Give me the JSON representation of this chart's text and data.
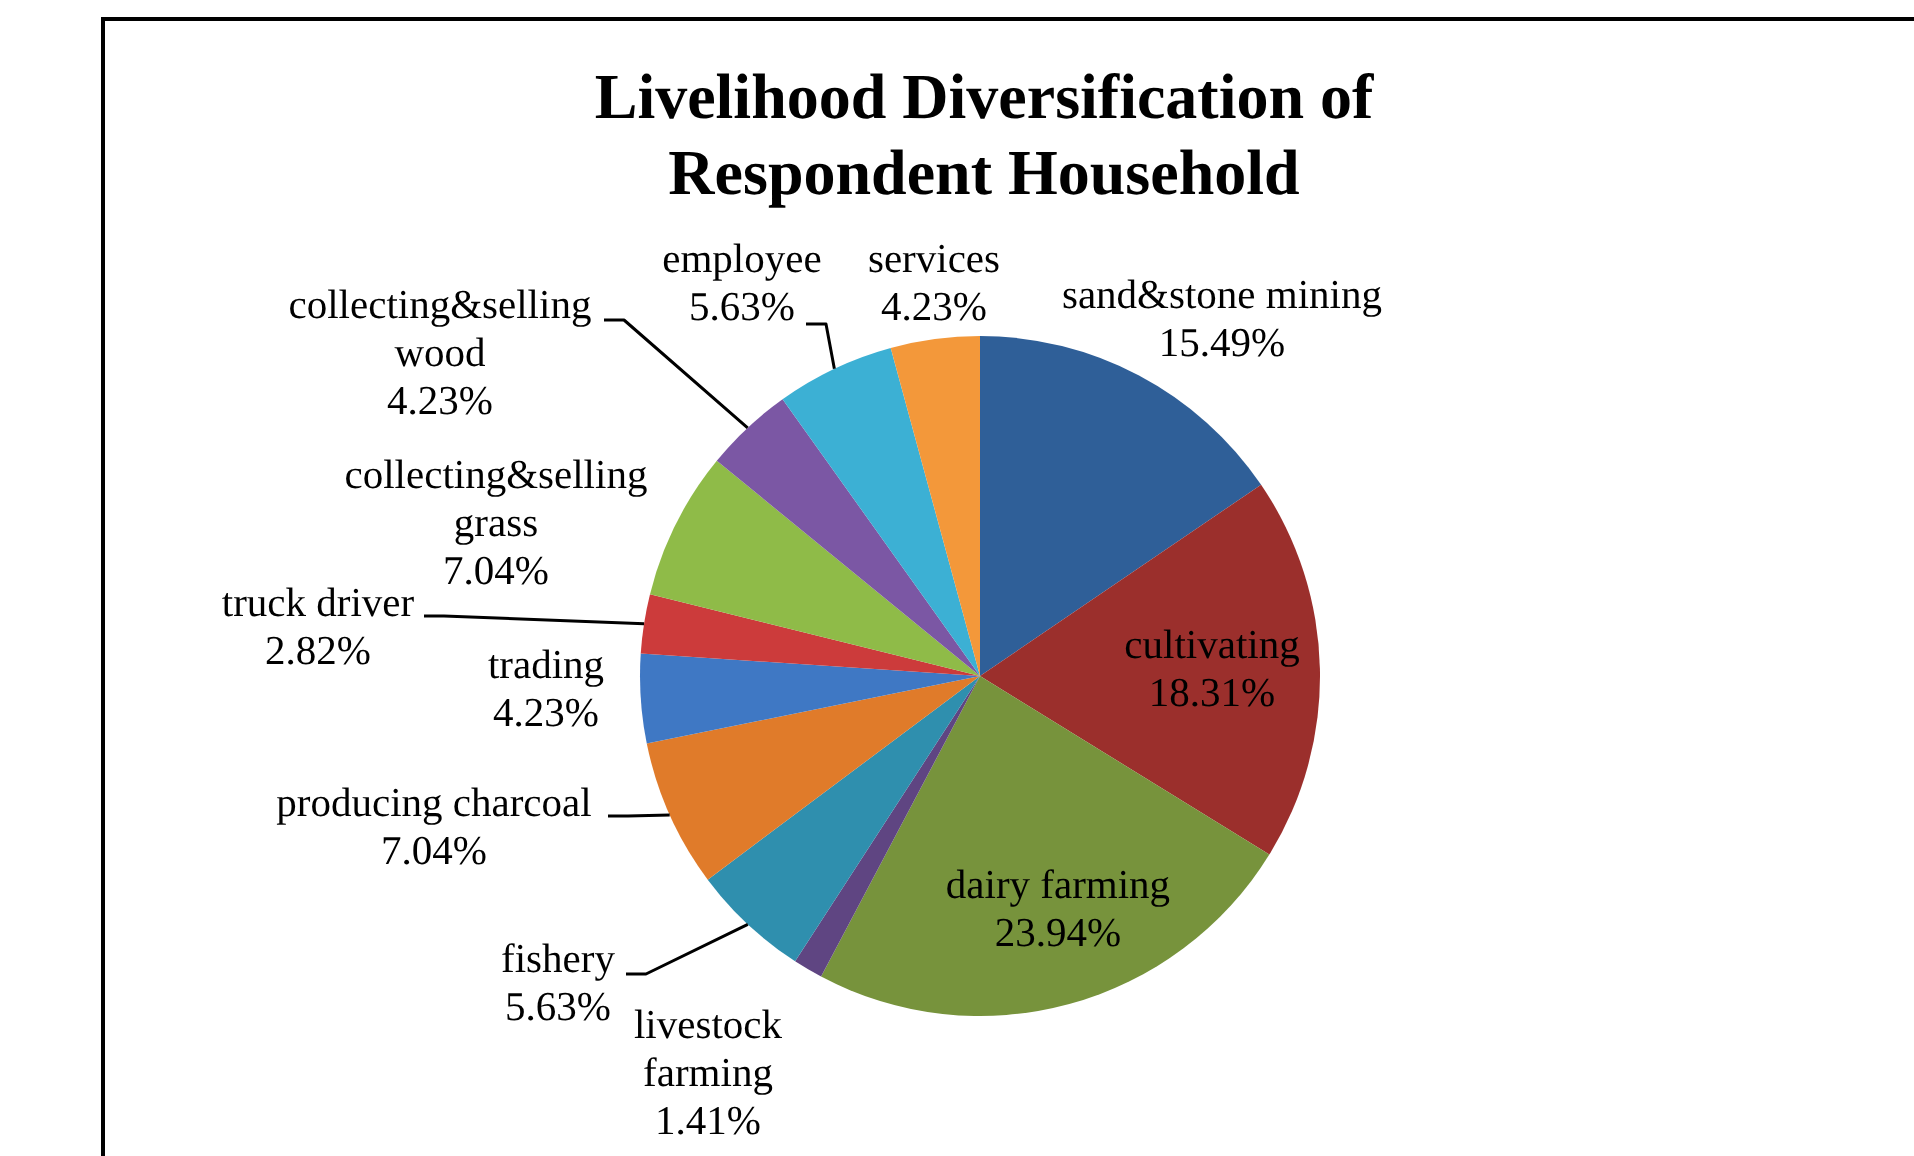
{
  "chart_data": {
    "type": "pie",
    "title": "Livelihood Diversification of Respondent Household",
    "categories": [
      "sand&stone mining",
      "cultivating",
      "dairy farming",
      "livestock farming",
      "fishery",
      "producing charcoal",
      "trading",
      "truck driver",
      "collecting&selling grass",
      "collecting&selling wood",
      "employee",
      "services"
    ],
    "values": [
      15.49,
      18.31,
      23.94,
      1.41,
      5.63,
      7.04,
      4.23,
      2.82,
      7.04,
      4.23,
      5.63,
      4.23
    ],
    "value_labels": [
      "15.49%",
      "18.31%",
      "23.94%",
      "1.41%",
      "5.63%",
      "7.04%",
      "4.23%",
      "2.82%",
      "7.04%",
      "4.23%",
      "5.63%",
      "4.23%"
    ],
    "colors": [
      "#2f5f98",
      "#9b2f2c",
      "#77933c",
      "#5f4582",
      "#2f8fae",
      "#e07b2a",
      "#3f78c4",
      "#cc3b3b",
      "#8fbb48",
      "#7b57a4",
      "#3cb0d4",
      "#f3983a"
    ]
  }
}
